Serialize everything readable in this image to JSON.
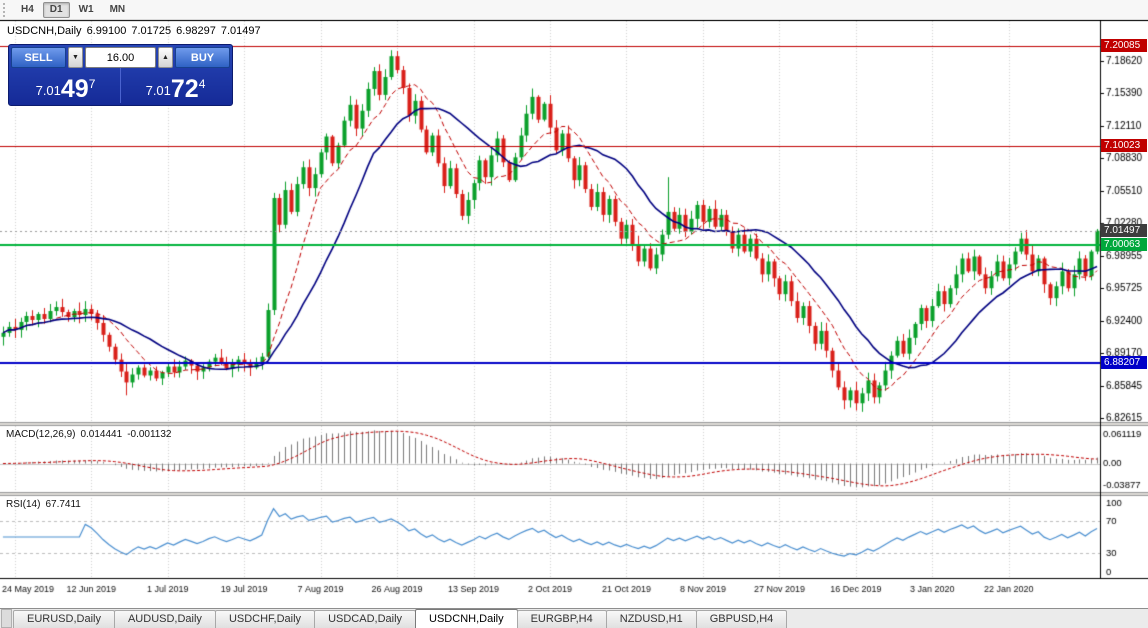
{
  "toolbar": {
    "timeframes": [
      {
        "label": "H4",
        "active": false
      },
      {
        "label": "D1",
        "active": true
      },
      {
        "label": "W1",
        "active": false
      },
      {
        "label": "MN",
        "active": false
      }
    ]
  },
  "chart_header": {
    "symbol_timeframe": "USDCNH,Daily",
    "open": "6.99100",
    "high": "7.01725",
    "low": "6.98297",
    "close": "7.01497"
  },
  "one_click": {
    "sell_label": "SELL",
    "buy_label": "BUY",
    "lot_size": "16.00",
    "sell_price": {
      "prefix": "7.01",
      "big": "49",
      "sup": "7"
    },
    "buy_price": {
      "prefix": "7.01",
      "big": "72",
      "sup": "4"
    }
  },
  "icons": {
    "spin_up": "▲",
    "spin_down": "▼"
  },
  "price_axis": {
    "ticks": [
      "7.18620",
      "7.15390",
      "7.12110",
      "7.08830",
      "7.05510",
      "7.02280",
      "6.98955",
      "6.95725",
      "6.92400",
      "6.89170",
      "6.85845",
      "6.82615"
    ],
    "tick_values": [
      7.1862,
      7.1539,
      7.1211,
      7.0883,
      7.0551,
      7.0228,
      6.98955,
      6.95725,
      6.924,
      6.8917,
      6.85845,
      6.82615
    ],
    "tags": [
      {
        "label": "7.20085",
        "value": 7.20085,
        "bg": "#c00000"
      },
      {
        "label": "7.10023",
        "value": 7.10023,
        "bg": "#c00000"
      },
      {
        "label": "7.01497",
        "value": 7.01497,
        "bg": "#3d3d3d"
      },
      {
        "label": "7.00063",
        "value": 7.00063,
        "bg": "#00a83c"
      },
      {
        "label": "6.88207",
        "value": 6.88207,
        "bg": "#0000c8"
      }
    ]
  },
  "indicators": {
    "macd": {
      "label": "MACD(12,26,9)",
      "value_main": "0.014441",
      "value_signal": "-0.001132",
      "scale_top": "0.061119",
      "scale_zero": "0.00",
      "scale_bottom": "-0.03877"
    },
    "rsi": {
      "label": "RSI(14)",
      "value": "67.7411",
      "scale": [
        "100",
        "70",
        "30",
        "0"
      ]
    }
  },
  "date_axis": {
    "labels": [
      "24 May 2019",
      "12 Jun 2019",
      "1 Jul 2019",
      "19 Jul 2019",
      "7 Aug 2019",
      "26 Aug 2019",
      "13 Sep 2019",
      "2 Oct 2019",
      "21 Oct 2019",
      "8 Nov 2019",
      "27 Nov 2019",
      "16 Dec 2019",
      "3 Jan 2020",
      "22 Jan 2020"
    ],
    "indices": [
      2,
      15,
      28,
      41,
      54,
      67,
      80,
      93,
      106,
      119,
      132,
      145,
      158,
      171
    ]
  },
  "tabs": [
    {
      "label": "EURUSD,Daily",
      "active": false
    },
    {
      "label": "AUDUSD,Daily",
      "active": false
    },
    {
      "label": "USDCHF,Daily",
      "active": false
    },
    {
      "label": "USDCAD,Daily",
      "active": false
    },
    {
      "label": "USDCNH,Daily",
      "active": true
    },
    {
      "label": "EURGBP,H4",
      "active": false
    },
    {
      "label": "NZDUSD,H1",
      "active": false
    },
    {
      "label": "GBPUSD,H4",
      "active": false
    }
  ],
  "chart_data": {
    "type": "candlestick",
    "symbol": "USDCNH",
    "period": "Daily",
    "last_ohlc": {
      "open": 6.991,
      "high": 7.01725,
      "low": 6.98297,
      "close": 7.01497
    },
    "price_range": {
      "top": 7.2265,
      "bottom": 6.8221
    },
    "closes": [
      6.912,
      6.918,
      6.915,
      6.923,
      6.929,
      6.925,
      6.931,
      6.926,
      6.934,
      6.938,
      6.933,
      6.928,
      6.934,
      6.93,
      6.936,
      6.931,
      6.922,
      6.91,
      6.898,
      6.885,
      6.873,
      6.862,
      6.87,
      6.877,
      6.869,
      6.874,
      6.866,
      6.872,
      6.878,
      6.872,
      6.878,
      6.884,
      6.879,
      6.873,
      6.877,
      6.883,
      6.887,
      6.881,
      6.876,
      6.88,
      6.885,
      6.881,
      6.877,
      6.882,
      6.888,
      6.935,
      7.048,
      7.021,
      7.056,
      7.034,
      7.062,
      7.079,
      7.058,
      7.072,
      7.094,
      7.11,
      7.083,
      7.101,
      7.126,
      7.142,
      7.118,
      7.136,
      7.158,
      7.176,
      7.152,
      7.17,
      7.191,
      7.177,
      7.159,
      7.131,
      7.146,
      7.117,
      7.094,
      7.111,
      7.083,
      7.06,
      7.078,
      7.052,
      7.03,
      7.046,
      7.063,
      7.086,
      7.069,
      7.091,
      7.108,
      7.084,
      7.066,
      7.089,
      7.111,
      7.133,
      7.15,
      7.127,
      7.143,
      7.119,
      7.096,
      7.113,
      7.088,
      7.066,
      7.081,
      7.057,
      7.039,
      7.054,
      7.031,
      7.047,
      7.024,
      7.007,
      7.021,
      7.001,
      6.984,
      6.997,
      6.977,
      6.991,
      7.011,
      7.034,
      7.017,
      7.031,
      7.014,
      7.027,
      7.041,
      7.024,
      7.037,
      7.019,
      7.031,
      7.014,
      6.997,
      7.011,
      6.994,
      7.007,
      6.987,
      6.971,
      6.984,
      6.967,
      6.951,
      6.964,
      6.944,
      6.927,
      6.939,
      6.919,
      6.901,
      6.914,
      6.894,
      6.874,
      6.857,
      6.844,
      6.854,
      6.841,
      6.851,
      6.864,
      6.847,
      6.859,
      6.874,
      6.889,
      6.904,
      6.891,
      6.907,
      6.921,
      6.937,
      6.924,
      6.939,
      6.954,
      6.941,
      6.957,
      6.971,
      6.987,
      6.974,
      6.989,
      6.971,
      6.957,
      6.969,
      6.984,
      6.967,
      6.981,
      6.994,
      7.007,
      6.991,
      6.974,
      6.987,
      6.961,
      6.947,
      6.959,
      6.974,
      6.957,
      6.971,
      6.987,
      6.969,
      6.994,
      7.015
    ],
    "wick_overrides": {
      "21": {
        "l": 0.013
      },
      "46": {
        "l": 0.005
      },
      "66": {
        "h": 0.006
      },
      "113": {
        "h": 0.035
      },
      "143": {
        "l": 0.009
      }
    },
    "h_lines": [
      {
        "value": 7.20085,
        "color": "#c00000",
        "width": 1,
        "style": "solid"
      },
      {
        "value": 7.10023,
        "color": "#c00000",
        "width": 1,
        "style": "solid"
      },
      {
        "value": 7.00063,
        "color": "#00b43c",
        "width": 2,
        "style": "solid"
      },
      {
        "value": 6.88207,
        "color": "#0000c8",
        "width": 2,
        "style": "solid"
      },
      {
        "value": 7.01497,
        "color": "#9a9a9a",
        "width": 1,
        "style": "dot"
      }
    ],
    "overlays": [
      {
        "name": "ma-fast",
        "type": "sma",
        "period": 9,
        "color": "#c00000",
        "dash": [
          5,
          3
        ],
        "width": 1
      },
      {
        "name": "ma-slow",
        "type": "sma",
        "period": 18,
        "color": "#000080",
        "dash": [],
        "width": 1.6
      }
    ],
    "macd": {
      "fast": 12,
      "slow": 26,
      "signal": 9,
      "hist_color": "#7a7a7a",
      "signal_color": "#c00000"
    },
    "rsi": {
      "period": 14,
      "color": "#4a8fd0",
      "levels": [
        70,
        30
      ]
    },
    "candle_colors": {
      "bull": "#0ba02b",
      "bear": "#d9201a"
    }
  }
}
